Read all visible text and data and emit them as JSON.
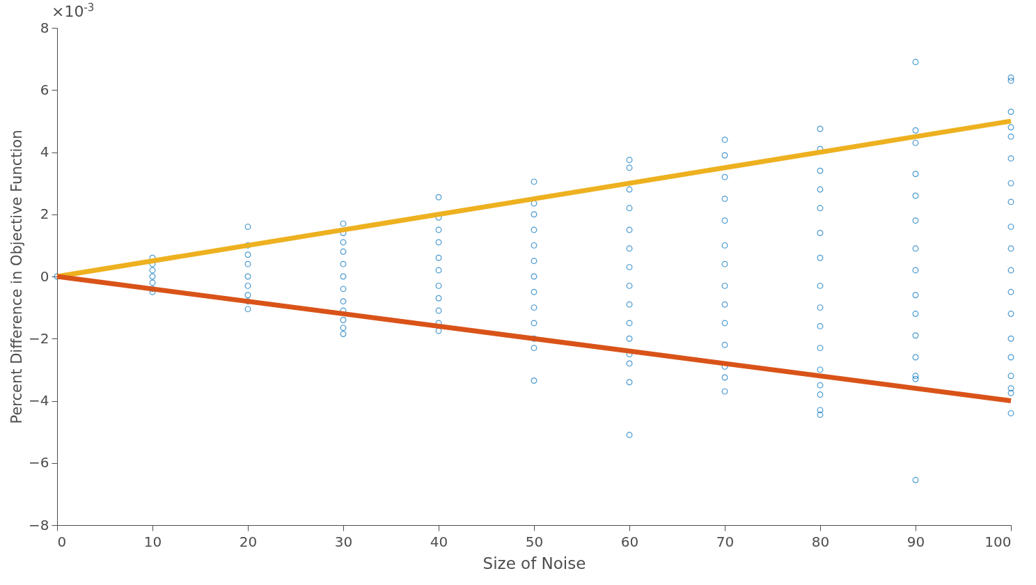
{
  "chart_data": {
    "type": "scatter",
    "xlabel": "Size of Noise",
    "ylabel": "Percent Difference in Objective Function",
    "annotations": [
      "×10$^{-3}$"
    ],
    "xlim": [
      0,
      100
    ],
    "xticks": [
      0,
      10,
      20,
      30,
      40,
      50,
      60,
      70,
      80,
      90,
      100
    ],
    "ylim": [
      -8,
      8
    ],
    "yticks": [
      -8,
      -6,
      -4,
      -2,
      0,
      2,
      4,
      6,
      8
    ],
    "grid": false,
    "series": [
      {
        "marker": "circle",
        "color": "#0072bd",
        "x": [
          0,
          10,
          10,
          10,
          10,
          10,
          10,
          10,
          20,
          20,
          20,
          20,
          20,
          20,
          20,
          20,
          20,
          30,
          30,
          30,
          30,
          30,
          30,
          30,
          30,
          30,
          30,
          30,
          30,
          40,
          40,
          40,
          40,
          40,
          40,
          40,
          40,
          40,
          40,
          40,
          50,
          50,
          50,
          50,
          50,
          50,
          50,
          50,
          50,
          50,
          50,
          50,
          50,
          60,
          60,
          60,
          60,
          60,
          60,
          60,
          60,
          60,
          60,
          60,
          60,
          60,
          60,
          60,
          70,
          70,
          70,
          70,
          70,
          70,
          70,
          70,
          70,
          70,
          70,
          70,
          70,
          70,
          80,
          80,
          80,
          80,
          80,
          80,
          80,
          80,
          80,
          80,
          80,
          80,
          80,
          80,
          80,
          80,
          90,
          90,
          90,
          90,
          90,
          90,
          90,
          90,
          90,
          90,
          90,
          90,
          90,
          90,
          90,
          100,
          100,
          100,
          100,
          100,
          100,
          100,
          100,
          100,
          100,
          100,
          100,
          100,
          100,
          100,
          100,
          100,
          100,
          100
        ],
        "values": [
          0,
          0.6,
          0.4,
          0.2,
          0,
          -0.2,
          -0.4,
          -0.5,
          1.6,
          1.0,
          0.7,
          0.4,
          0,
          -0.3,
          -0.6,
          -0.8,
          -1.05,
          1.7,
          1.4,
          1.1,
          0.8,
          0.4,
          0,
          -0.4,
          -0.8,
          -1.1,
          -1.4,
          -1.65,
          -1.85,
          2.55,
          1.9,
          1.5,
          1.1,
          0.6,
          0.2,
          -0.3,
          -0.7,
          -1.1,
          -1.5,
          -1.75,
          3.05,
          2.35,
          2.0,
          1.5,
          1.0,
          0.5,
          0,
          -0.5,
          -1.0,
          -1.5,
          -2.0,
          -2.3,
          -3.35,
          3.75,
          3.5,
          2.8,
          2.2,
          1.5,
          0.9,
          0.3,
          -0.3,
          -0.9,
          -1.5,
          -2.0,
          -2.5,
          -2.8,
          -3.4,
          -5.1,
          4.4,
          3.9,
          3.2,
          2.5,
          1.8,
          1.0,
          0.4,
          -0.3,
          -0.9,
          -1.5,
          -2.2,
          -2.9,
          -3.25,
          -3.7,
          4.75,
          4.1,
          3.4,
          2.8,
          2.2,
          1.4,
          0.6,
          -0.3,
          -1.0,
          -1.6,
          -2.3,
          -3.0,
          -3.5,
          -3.8,
          -4.3,
          -4.45,
          6.9,
          4.7,
          4.3,
          3.3,
          2.6,
          1.8,
          0.9,
          0.2,
          -0.6,
          -1.2,
          -1.9,
          -2.6,
          -3.2,
          -3.3,
          -6.55,
          6.4,
          6.3,
          5.3,
          4.8,
          4.5,
          3.8,
          3.0,
          2.4,
          1.6,
          0.9,
          0.2,
          -0.5,
          -1.2,
          -2.0,
          -2.6,
          -3.2,
          -3.6,
          -3.75,
          -4.4
        ]
      },
      {
        "type": "line",
        "marker": "none",
        "color": "#edb120",
        "x": [
          0,
          100
        ],
        "values": [
          0,
          5
        ]
      },
      {
        "type": "line",
        "marker": "none",
        "color": "#d95319",
        "x": [
          0,
          100
        ],
        "values": [
          0,
          -4
        ]
      }
    ]
  }
}
